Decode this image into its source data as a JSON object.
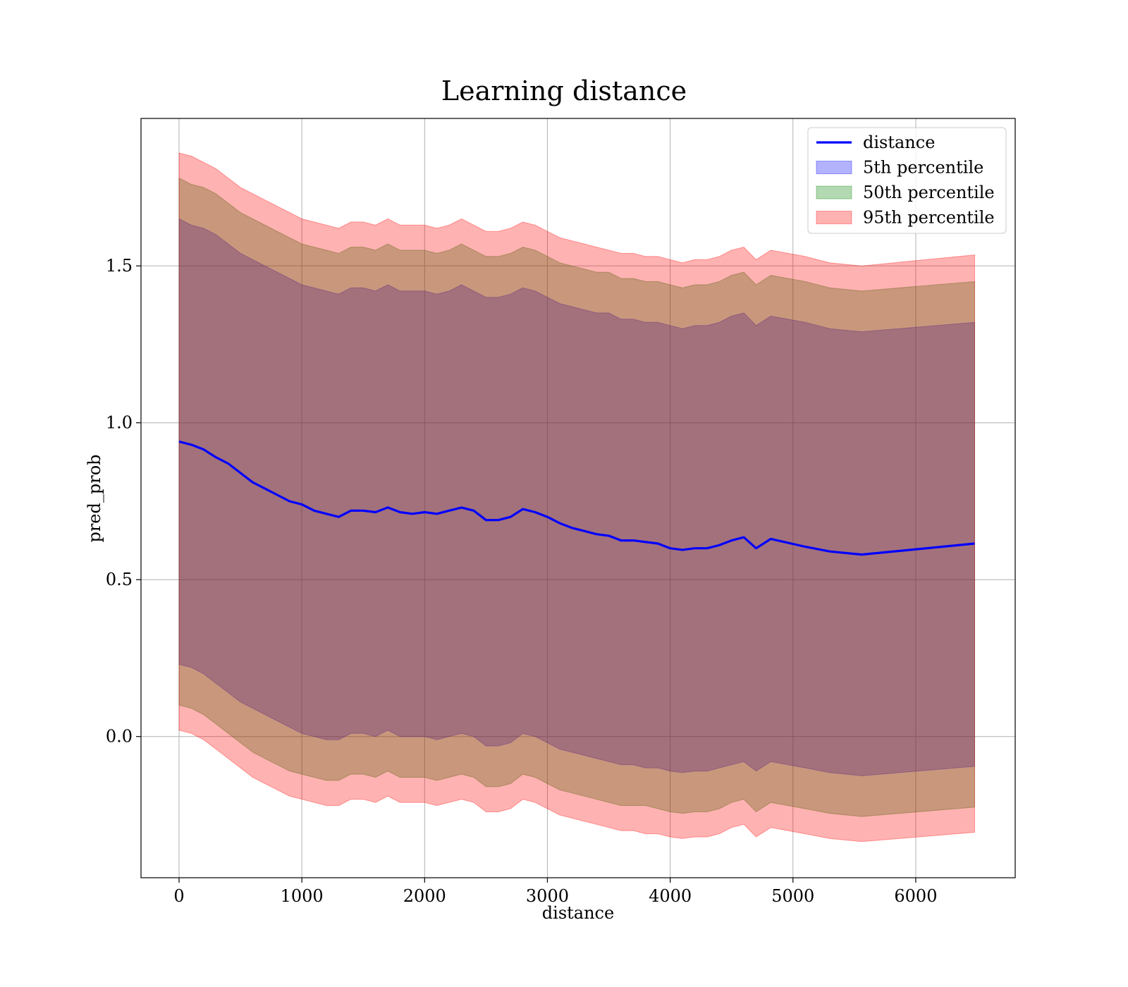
{
  "chart_data": {
    "type": "area",
    "title": "Learning distance",
    "xlabel": "distance",
    "ylabel": "pred_prob",
    "xlim": [
      -310,
      6810
    ],
    "ylim": [
      -0.45,
      1.97
    ],
    "xticks": [
      0,
      1000,
      2000,
      3000,
      4000,
      5000,
      6000
    ],
    "xtick_labels": [
      "0",
      "1000",
      "2000",
      "3000",
      "4000",
      "5000",
      "6000"
    ],
    "yticks": [
      0.0,
      0.5,
      1.0,
      1.5
    ],
    "ytick_labels": [
      "0.0",
      "0.5",
      "1.0",
      "1.5"
    ],
    "grid": true,
    "legend_position": "top-right",
    "x": [
      0,
      100,
      200,
      300,
      400,
      500,
      600,
      700,
      800,
      900,
      1000,
      1100,
      1200,
      1300,
      1400,
      1500,
      1600,
      1700,
      1800,
      1900,
      2000,
      2100,
      2200,
      2300,
      2400,
      2500,
      2600,
      2700,
      2800,
      2900,
      3000,
      3100,
      3200,
      3300,
      3400,
      3500,
      3600,
      3700,
      3800,
      3900,
      4000,
      4100,
      4200,
      4300,
      4400,
      4500,
      4600,
      4700,
      4820,
      5100,
      5300,
      5560,
      6480
    ],
    "series": [
      {
        "name": "distance",
        "kind": "line",
        "color": "#0000ff",
        "values": [
          0.94,
          0.93,
          0.915,
          0.89,
          0.87,
          0.84,
          0.81,
          0.79,
          0.77,
          0.75,
          0.74,
          0.72,
          0.71,
          0.7,
          0.72,
          0.72,
          0.715,
          0.73,
          0.715,
          0.71,
          0.715,
          0.71,
          0.72,
          0.73,
          0.72,
          0.69,
          0.69,
          0.7,
          0.725,
          0.715,
          0.7,
          0.68,
          0.665,
          0.655,
          0.645,
          0.64,
          0.625,
          0.625,
          0.62,
          0.615,
          0.6,
          0.595,
          0.6,
          0.6,
          0.61,
          0.625,
          0.635,
          0.6,
          0.63,
          0.605,
          0.59,
          0.58,
          0.615
        ]
      },
      {
        "name": "5th percentile",
        "kind": "band",
        "color": "#0000ff",
        "lower": [
          0.23,
          0.22,
          0.2,
          0.17,
          0.14,
          0.11,
          0.09,
          0.07,
          0.05,
          0.03,
          0.01,
          0.0,
          -0.01,
          -0.01,
          0.01,
          0.01,
          0.0,
          0.02,
          0.0,
          0.0,
          0.0,
          -0.01,
          0.0,
          0.01,
          0.0,
          -0.03,
          -0.03,
          -0.02,
          0.01,
          0.0,
          -0.02,
          -0.04,
          -0.05,
          -0.06,
          -0.07,
          -0.08,
          -0.09,
          -0.09,
          -0.1,
          -0.1,
          -0.11,
          -0.115,
          -0.11,
          -0.11,
          -0.1,
          -0.09,
          -0.08,
          -0.11,
          -0.08,
          -0.1,
          -0.115,
          -0.125,
          -0.095
        ],
        "upper": [
          1.65,
          1.63,
          1.62,
          1.6,
          1.57,
          1.54,
          1.52,
          1.5,
          1.48,
          1.46,
          1.44,
          1.43,
          1.42,
          1.41,
          1.43,
          1.43,
          1.42,
          1.44,
          1.42,
          1.42,
          1.42,
          1.41,
          1.42,
          1.44,
          1.42,
          1.4,
          1.4,
          1.41,
          1.43,
          1.42,
          1.4,
          1.38,
          1.37,
          1.36,
          1.35,
          1.35,
          1.33,
          1.33,
          1.32,
          1.32,
          1.31,
          1.3,
          1.31,
          1.31,
          1.32,
          1.34,
          1.35,
          1.31,
          1.34,
          1.32,
          1.3,
          1.29,
          1.32
        ]
      },
      {
        "name": "50th percentile",
        "kind": "band",
        "color": "#008000",
        "lower": [
          0.1,
          0.09,
          0.07,
          0.04,
          0.01,
          -0.02,
          -0.05,
          -0.07,
          -0.09,
          -0.11,
          -0.12,
          -0.13,
          -0.14,
          -0.14,
          -0.12,
          -0.12,
          -0.13,
          -0.11,
          -0.13,
          -0.13,
          -0.13,
          -0.14,
          -0.13,
          -0.12,
          -0.13,
          -0.16,
          -0.16,
          -0.15,
          -0.12,
          -0.13,
          -0.15,
          -0.17,
          -0.18,
          -0.19,
          -0.2,
          -0.21,
          -0.22,
          -0.22,
          -0.22,
          -0.23,
          -0.24,
          -0.245,
          -0.24,
          -0.24,
          -0.23,
          -0.21,
          -0.2,
          -0.24,
          -0.21,
          -0.23,
          -0.245,
          -0.255,
          -0.225
        ],
        "upper": [
          1.78,
          1.76,
          1.75,
          1.73,
          1.7,
          1.67,
          1.65,
          1.63,
          1.61,
          1.59,
          1.57,
          1.56,
          1.55,
          1.54,
          1.56,
          1.56,
          1.55,
          1.57,
          1.55,
          1.55,
          1.55,
          1.54,
          1.55,
          1.57,
          1.55,
          1.53,
          1.53,
          1.54,
          1.56,
          1.55,
          1.53,
          1.51,
          1.5,
          1.49,
          1.48,
          1.48,
          1.46,
          1.46,
          1.45,
          1.45,
          1.44,
          1.43,
          1.44,
          1.44,
          1.45,
          1.47,
          1.48,
          1.44,
          1.47,
          1.45,
          1.43,
          1.42,
          1.45
        ]
      },
      {
        "name": "95th percentile",
        "kind": "band",
        "color": "#ff0000",
        "lower": [
          0.02,
          0.01,
          -0.01,
          -0.04,
          -0.07,
          -0.1,
          -0.13,
          -0.15,
          -0.17,
          -0.19,
          -0.2,
          -0.21,
          -0.22,
          -0.22,
          -0.2,
          -0.2,
          -0.21,
          -0.19,
          -0.21,
          -0.21,
          -0.21,
          -0.22,
          -0.21,
          -0.2,
          -0.21,
          -0.24,
          -0.24,
          -0.23,
          -0.2,
          -0.21,
          -0.23,
          -0.25,
          -0.26,
          -0.27,
          -0.28,
          -0.29,
          -0.3,
          -0.3,
          -0.31,
          -0.31,
          -0.32,
          -0.325,
          -0.32,
          -0.32,
          -0.31,
          -0.29,
          -0.28,
          -0.32,
          -0.29,
          -0.31,
          -0.325,
          -0.335,
          -0.305
        ],
        "upper": [
          1.86,
          1.85,
          1.83,
          1.81,
          1.78,
          1.75,
          1.73,
          1.71,
          1.69,
          1.67,
          1.65,
          1.64,
          1.63,
          1.62,
          1.64,
          1.64,
          1.63,
          1.65,
          1.63,
          1.63,
          1.63,
          1.62,
          1.63,
          1.65,
          1.63,
          1.61,
          1.61,
          1.62,
          1.64,
          1.63,
          1.61,
          1.59,
          1.58,
          1.57,
          1.56,
          1.55,
          1.54,
          1.54,
          1.53,
          1.53,
          1.52,
          1.51,
          1.52,
          1.52,
          1.53,
          1.55,
          1.56,
          1.52,
          1.55,
          1.53,
          1.51,
          1.5,
          1.535
        ]
      }
    ]
  }
}
